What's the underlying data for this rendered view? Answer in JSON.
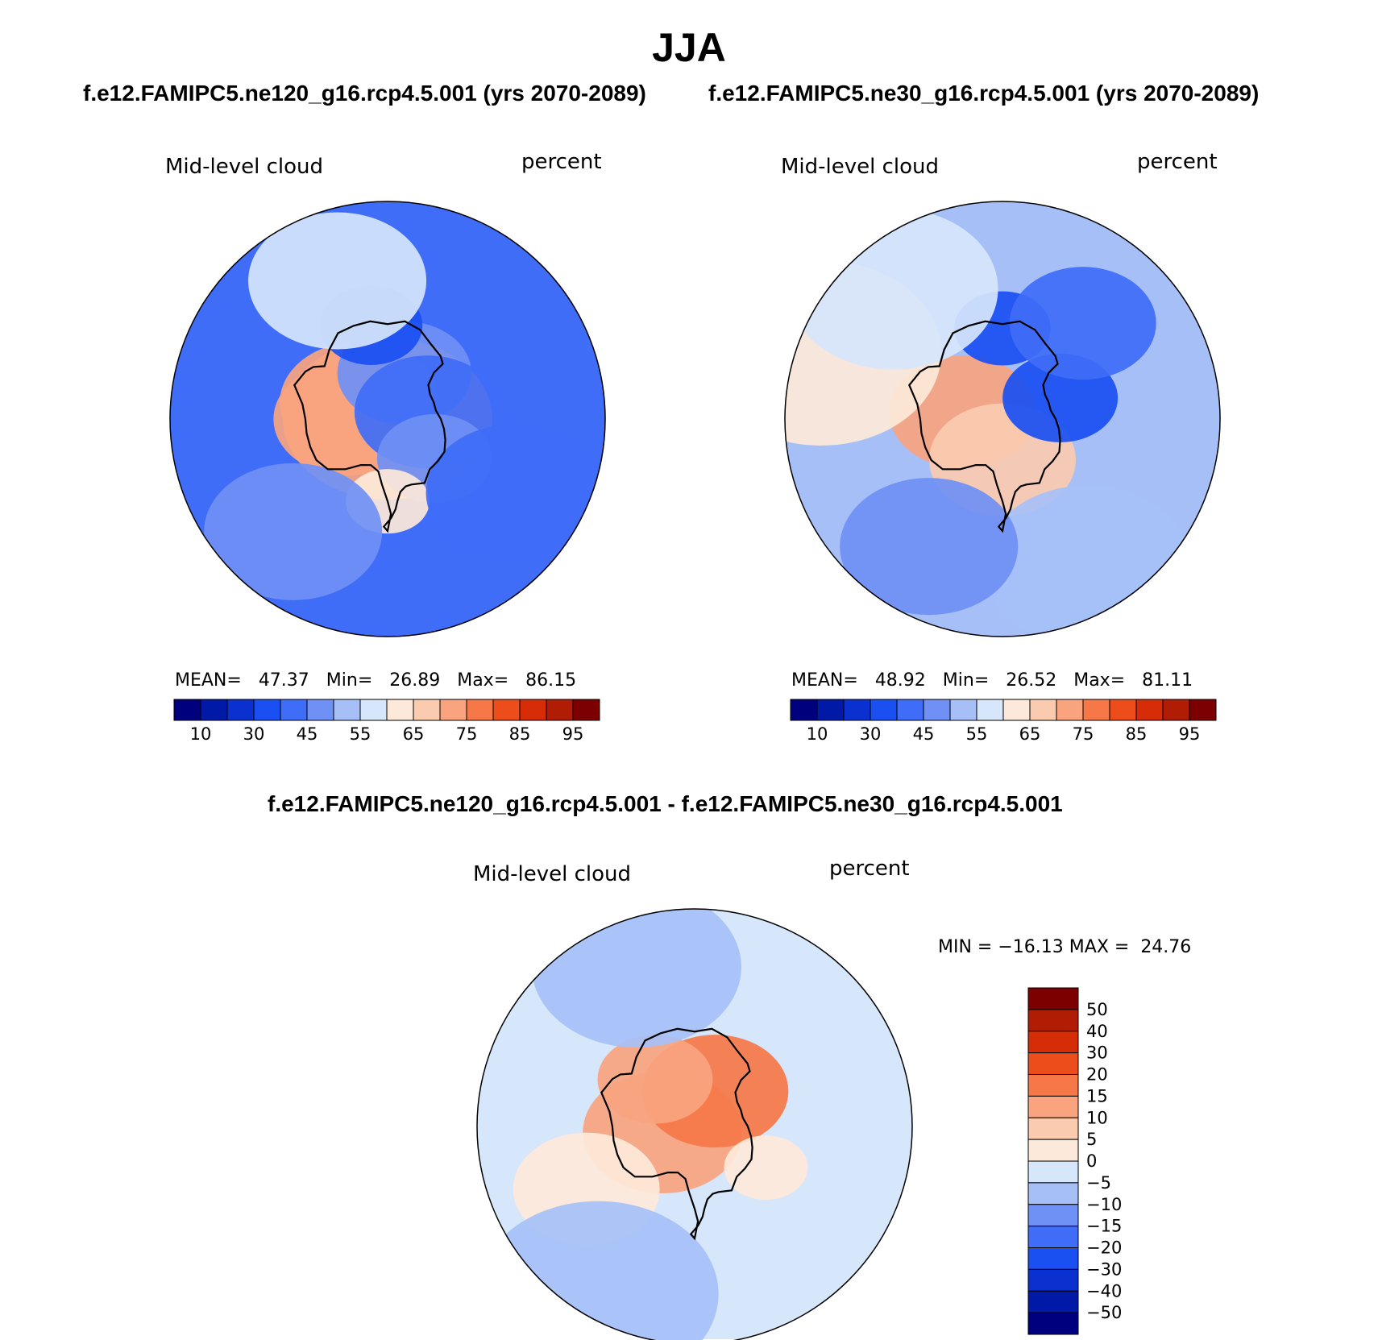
{
  "title": "JJA",
  "case_titles": {
    "left": "f.e12.FAMIPC5.ne120_g16.rcp4.5.001 (yrs 2070-2089)",
    "right": "f.e12.FAMIPC5.ne30_g16.rcp4.5.001 (yrs 2070-2089)",
    "diff": "f.e12.FAMIPC5.ne120_g16.rcp4.5.001 - f.e12.FAMIPC5.ne30_g16.rcp4.5.001"
  },
  "colors": {
    "coastline": "#000000",
    "abs_scale": [
      "#00007f",
      "#0019a6",
      "#0a30d0",
      "#1a4ff2",
      "#3f6df7",
      "#6f90f4",
      "#a6c0f7",
      "#d6e6fb",
      "#fde9d9",
      "#fbcbb0",
      "#f9a47f",
      "#f67848",
      "#ec4d1b",
      "#d62c07",
      "#b01c04",
      "#7c0000"
    ],
    "diff_scale": [
      "#00007f",
      "#0019a6",
      "#0a30d0",
      "#1a4ff2",
      "#3f6df7",
      "#6f90f4",
      "#a6c0f7",
      "#d6e6fb",
      "#fde9d9",
      "#fbcbb0",
      "#f9a47f",
      "#f67848",
      "#ec4d1b",
      "#d62c07",
      "#b01c04",
      "#7c0000"
    ]
  },
  "chart_data": [
    {
      "type": "heatmap",
      "projection": "south-polar-stereographic",
      "variable": "Mid-level cloud",
      "units": "percent",
      "case": "f.e12.FAMIPC5.ne120_g16.rcp4.5.001 (yrs 2070-2089)",
      "stats": {
        "mean_label": "MEAN=",
        "mean": "47.37",
        "min_label": "Min=",
        "min": "26.89",
        "max_label": "Max=",
        "max": "86.15"
      },
      "colorbar": {
        "orientation": "horizontal",
        "levels": [
          10,
          30,
          45,
          55,
          65,
          75,
          85,
          95
        ]
      },
      "fields": [
        {
          "lon": 0,
          "lat": -90,
          "value": 70
        },
        {
          "lon": 30,
          "lat": -80,
          "value": 72
        },
        {
          "lon": 60,
          "lat": -82,
          "value": 70
        },
        {
          "lon": 140,
          "lat": -78,
          "value": 48
        },
        {
          "lon": 110,
          "lat": -67,
          "value": 36
        },
        {
          "lon": -160,
          "lat": -80,
          "value": 40
        },
        {
          "lon": -110,
          "lat": -75,
          "value": 45
        },
        {
          "lon": -60,
          "lat": -70,
          "value": 60
        },
        {
          "lon": 100,
          "lat": -55,
          "value": 55
        },
        {
          "lon": -20,
          "lat": -55,
          "value": 48
        },
        {
          "lon": -120,
          "lat": -55,
          "value": 40
        }
      ]
    },
    {
      "type": "heatmap",
      "projection": "south-polar-stereographic",
      "variable": "Mid-level cloud",
      "units": "percent",
      "case": "f.e12.FAMIPC5.ne30_g16.rcp4.5.001 (yrs 2070-2089)",
      "stats": {
        "mean_label": "MEAN=",
        "mean": "48.92",
        "min_label": "Min=",
        "min": "26.52",
        "max_label": "Max=",
        "max": "81.11"
      },
      "colorbar": {
        "orientation": "horizontal",
        "levels": [
          10,
          30,
          45,
          55,
          65,
          75,
          85,
          95
        ]
      },
      "fields": [
        {
          "lon": 40,
          "lat": -80,
          "value": 72
        },
        {
          "lon": -60,
          "lat": -80,
          "value": 66
        },
        {
          "lon": 120,
          "lat": -68,
          "value": 35
        },
        {
          "lon": -170,
          "lat": -75,
          "value": 35
        },
        {
          "lon": 160,
          "lat": -60,
          "value": 40
        },
        {
          "lon": 50,
          "lat": -45,
          "value": 64
        },
        {
          "lon": 80,
          "lat": -50,
          "value": 56
        },
        {
          "lon": -90,
          "lat": -50,
          "value": 52
        },
        {
          "lon": -30,
          "lat": -55,
          "value": 45
        }
      ]
    },
    {
      "type": "heatmap",
      "projection": "south-polar-stereographic",
      "variable": "Mid-level cloud",
      "units": "percent",
      "case": "f.e12.FAMIPC5.ne120_g16.rcp4.5.001 - f.e12.FAMIPC5.ne30_g16.rcp4.5.001",
      "stats": {
        "min_label": "MIN =",
        "min": "−16.13",
        "max_label": "MAX =",
        "max": "24.76"
      },
      "colorbar": {
        "orientation": "vertical",
        "levels": [
          "50",
          "40",
          "30",
          "20",
          "15",
          "10",
          "5",
          "0",
          "−5",
          "−10",
          "−15",
          "−20",
          "−30",
          "−40",
          "−50"
        ]
      },
      "fields": [
        {
          "lon": 20,
          "lat": -82,
          "value": 12
        },
        {
          "lon": 150,
          "lat": -80,
          "value": 18
        },
        {
          "lon": 80,
          "lat": -75,
          "value": 10
        },
        {
          "lon": -120,
          "lat": -70,
          "value": 2
        },
        {
          "lon": 0,
          "lat": -60,
          "value": 2
        },
        {
          "lon": 100,
          "lat": -50,
          "value": -8
        },
        {
          "lon": -30,
          "lat": -45,
          "value": -6
        }
      ]
    }
  ]
}
